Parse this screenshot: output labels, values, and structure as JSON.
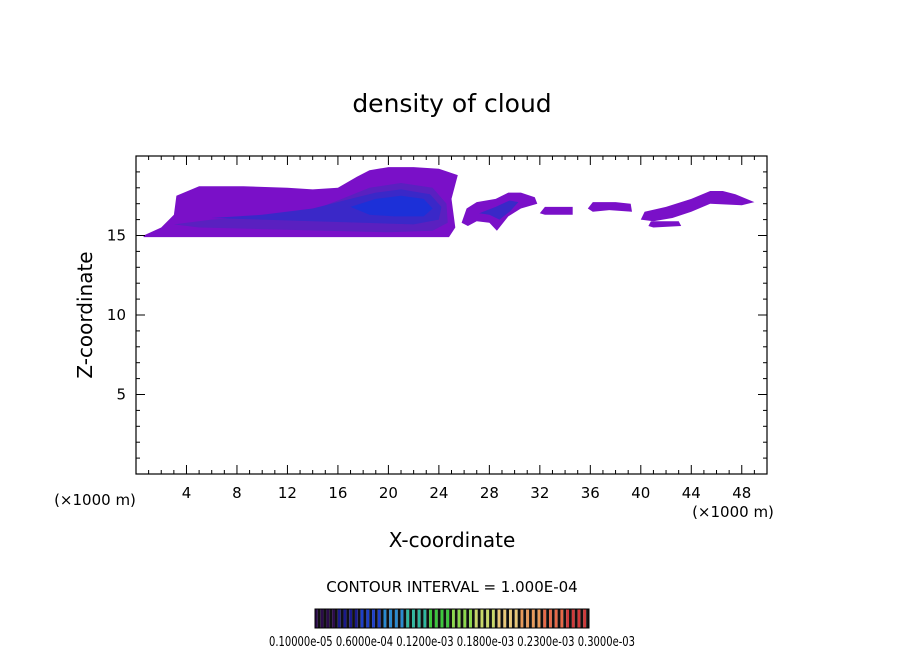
{
  "chart_data": {
    "type": "heatmap",
    "title": "density of cloud",
    "xlabel": "X-coordinate",
    "ylabel": "Z-coordinate",
    "x_unit_label_left": "(×1000 m)",
    "x_unit_label_right": "(×1000 m)",
    "xlim": [
      0,
      50
    ],
    "ylim": [
      0,
      20
    ],
    "x_ticks": [
      4,
      8,
      12,
      16,
      20,
      24,
      28,
      32,
      36,
      40,
      44,
      48
    ],
    "x_tick_labels": [
      "4",
      "8",
      "12",
      "16",
      "20",
      "24",
      "28",
      "32",
      "36",
      "40",
      "44",
      "48"
    ],
    "y_ticks": [
      5,
      10,
      15
    ],
    "y_tick_labels": [
      "5",
      "10",
      "15"
    ],
    "contour_interval_label": "CONTOUR INTERVAL = 1.000E-04",
    "colorbar_labels_text": "0.10000e-05 0.6000e-04 0.1200e-03 0.1800e-03 0.2300e-03 0.3000e-03",
    "colorbar_colors": [
      "#2a0a4a",
      "#1a1a8a",
      "#1e3fc8",
      "#2a8ad0",
      "#2fb8a0",
      "#3cc83c",
      "#8cd84c",
      "#c8d868",
      "#e8c878",
      "#e89a5a",
      "#e86a48",
      "#d03a3a"
    ],
    "cloud_colors": {
      "outer": "#7a10c8",
      "mid": "#5a20c0",
      "inner": "#3a28c8",
      "core": "#1c30d8"
    },
    "cloud_regions": [
      {
        "name": "main-cloud",
        "level": "outer",
        "polygon": [
          [
            0.6,
            15.0
          ],
          [
            2.0,
            15.5
          ],
          [
            3.0,
            16.3
          ],
          [
            3.2,
            17.5
          ],
          [
            5.0,
            18.1
          ],
          [
            8.5,
            18.1
          ],
          [
            12.0,
            18.0
          ],
          [
            14.0,
            17.9
          ],
          [
            16.0,
            18.0
          ],
          [
            17.5,
            18.7
          ],
          [
            18.5,
            19.1
          ],
          [
            20.0,
            19.3
          ],
          [
            22.0,
            19.3
          ],
          [
            24.0,
            19.2
          ],
          [
            25.5,
            18.8
          ],
          [
            25.0,
            17.3
          ],
          [
            25.3,
            15.5
          ],
          [
            24.8,
            14.9
          ],
          [
            20.0,
            14.9
          ],
          [
            16.0,
            14.9
          ],
          [
            11.0,
            14.9
          ],
          [
            5.0,
            14.9
          ],
          [
            3.0,
            14.9
          ],
          [
            0.6,
            14.9
          ]
        ]
      },
      {
        "name": "main-cloud",
        "level": "mid",
        "polygon": [
          [
            3.0,
            15.7
          ],
          [
            6.0,
            16.0
          ],
          [
            10.0,
            16.2
          ],
          [
            14.0,
            16.6
          ],
          [
            16.0,
            17.2
          ],
          [
            18.5,
            18.0
          ],
          [
            21.0,
            18.3
          ],
          [
            23.5,
            18.0
          ],
          [
            24.6,
            17.0
          ],
          [
            24.7,
            15.8
          ],
          [
            23.5,
            15.3
          ],
          [
            20.0,
            15.2
          ],
          [
            15.0,
            15.3
          ],
          [
            10.0,
            15.4
          ],
          [
            5.0,
            15.5
          ]
        ]
      },
      {
        "name": "main-cloud",
        "level": "inner",
        "polygon": [
          [
            6.0,
            16.1
          ],
          [
            10.0,
            16.3
          ],
          [
            14.0,
            16.7
          ],
          [
            17.0,
            17.3
          ],
          [
            19.0,
            17.7
          ],
          [
            21.0,
            17.9
          ],
          [
            23.3,
            17.6
          ],
          [
            24.2,
            16.8
          ],
          [
            24.0,
            16.0
          ],
          [
            22.0,
            15.7
          ],
          [
            18.0,
            15.8
          ],
          [
            14.0,
            15.9
          ],
          [
            10.0,
            16.0
          ]
        ]
      },
      {
        "name": "main-cloud",
        "level": "core",
        "polygon": [
          [
            17.0,
            16.8
          ],
          [
            19.0,
            17.3
          ],
          [
            21.0,
            17.5
          ],
          [
            22.8,
            17.3
          ],
          [
            23.5,
            16.7
          ],
          [
            22.8,
            16.2
          ],
          [
            20.5,
            16.2
          ],
          [
            18.5,
            16.3
          ]
        ]
      },
      {
        "name": "cloud-28km",
        "level": "outer",
        "polygon": [
          [
            25.8,
            15.8
          ],
          [
            26.2,
            16.7
          ],
          [
            27.0,
            17.1
          ],
          [
            28.5,
            17.3
          ],
          [
            29.5,
            17.7
          ],
          [
            30.5,
            17.7
          ],
          [
            31.6,
            17.4
          ],
          [
            31.8,
            17.0
          ],
          [
            30.5,
            16.7
          ],
          [
            29.5,
            16.2
          ],
          [
            28.6,
            15.3
          ],
          [
            28.0,
            15.8
          ],
          [
            27.0,
            15.9
          ],
          [
            26.3,
            15.6
          ]
        ]
      },
      {
        "name": "cloud-28km",
        "level": "inner",
        "polygon": [
          [
            27.2,
            16.4
          ],
          [
            28.5,
            16.8
          ],
          [
            29.6,
            17.2
          ],
          [
            30.3,
            17.1
          ],
          [
            29.6,
            16.5
          ],
          [
            28.8,
            16.0
          ],
          [
            28.0,
            16.3
          ]
        ]
      },
      {
        "name": "cloud-32km",
        "level": "outer",
        "polygon": [
          [
            32.0,
            16.4
          ],
          [
            32.4,
            16.8
          ],
          [
            34.6,
            16.8
          ],
          [
            34.6,
            16.3
          ],
          [
            32.4,
            16.3
          ]
        ]
      },
      {
        "name": "cloud-37km",
        "level": "outer",
        "polygon": [
          [
            35.8,
            16.7
          ],
          [
            36.2,
            17.1
          ],
          [
            38.0,
            17.1
          ],
          [
            39.2,
            17.0
          ],
          [
            39.3,
            16.5
          ],
          [
            37.5,
            16.6
          ],
          [
            36.2,
            16.5
          ]
        ]
      },
      {
        "name": "cloud-44km",
        "level": "outer",
        "polygon": [
          [
            40.0,
            16.0
          ],
          [
            40.3,
            16.5
          ],
          [
            42.0,
            16.8
          ],
          [
            44.0,
            17.3
          ],
          [
            45.5,
            17.8
          ],
          [
            46.5,
            17.8
          ],
          [
            47.5,
            17.6
          ],
          [
            49.0,
            17.1
          ],
          [
            48.0,
            16.9
          ],
          [
            45.5,
            17.0
          ],
          [
            44.0,
            16.5
          ],
          [
            42.5,
            16.1
          ],
          [
            41.0,
            15.9
          ]
        ]
      },
      {
        "name": "cloud-42km-low",
        "level": "outer",
        "polygon": [
          [
            40.6,
            15.6
          ],
          [
            40.8,
            15.9
          ],
          [
            43.0,
            15.9
          ],
          [
            43.2,
            15.6
          ],
          [
            41.0,
            15.5
          ]
        ]
      }
    ]
  }
}
